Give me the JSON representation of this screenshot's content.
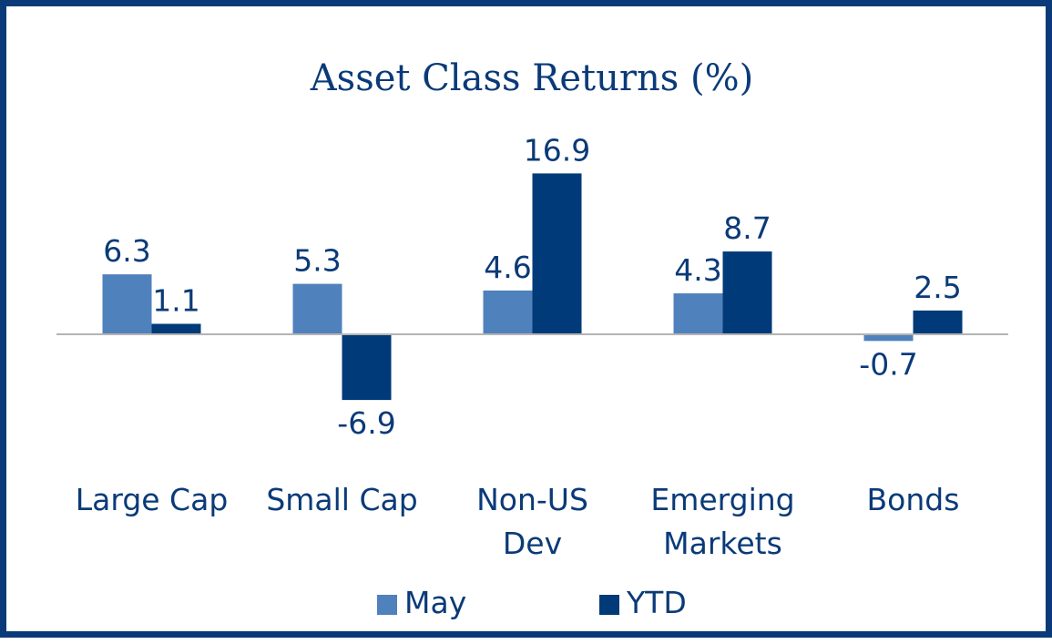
{
  "colors": {
    "border": "#0a3a78",
    "text": "#0a3a78",
    "baseline": "#b4b4b4"
  },
  "chart_data": {
    "type": "bar",
    "title": "Asset Class Returns (%)",
    "categories": [
      [
        "Large Cap"
      ],
      [
        "Small Cap"
      ],
      [
        "Non-US",
        "Dev"
      ],
      [
        "Emerging",
        "Markets"
      ],
      [
        "Bonds"
      ]
    ],
    "series": [
      {
        "name": "May",
        "color": "#4f81bd",
        "values": [
          6.3,
          5.3,
          4.6,
          4.3,
          -0.7
        ]
      },
      {
        "name": "YTD",
        "color": "#003a78",
        "values": [
          1.1,
          -6.9,
          16.9,
          8.7,
          2.5
        ]
      }
    ],
    "grid": false,
    "legend_position": "bottom"
  }
}
